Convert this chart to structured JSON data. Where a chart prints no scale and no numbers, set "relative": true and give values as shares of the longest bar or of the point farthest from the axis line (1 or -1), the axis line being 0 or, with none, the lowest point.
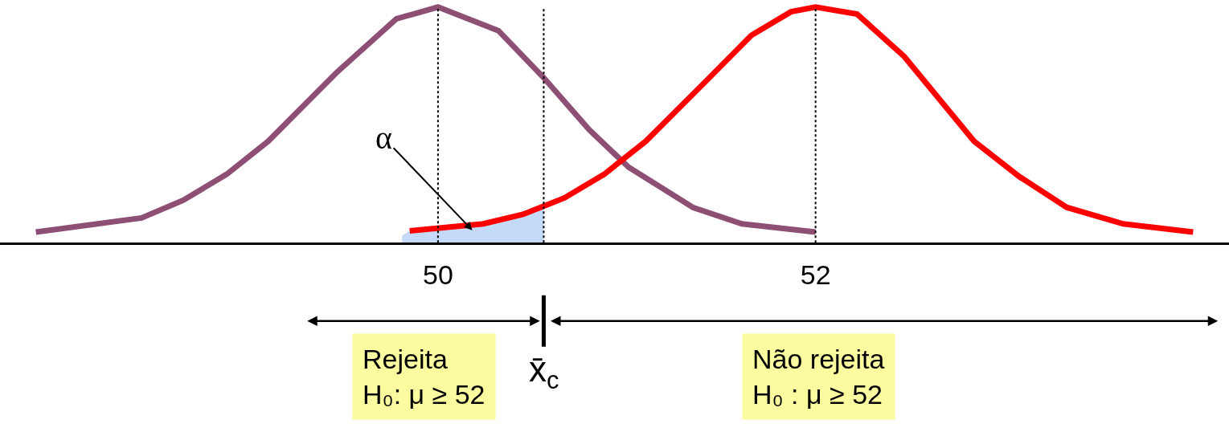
{
  "chart_data": {
    "type": "line",
    "relative": true,
    "xlim": [
      47.68,
      54.19
    ],
    "xticks": [
      50,
      52
    ],
    "marker": "none",
    "line_style": "solid",
    "series": [
      {
        "color": "#8e4f75",
        "x": [
          47.87,
          48.43,
          48.65,
          48.88,
          49.1,
          49.46,
          49.78,
          50,
          50.32,
          50.56,
          50.8,
          51.01,
          51.35,
          51.61,
          52
        ],
        "values": [
          0.045,
          0.105,
          0.18,
          0.29,
          0.43,
          0.72,
          0.95,
          1,
          0.9,
          0.7,
          0.48,
          0.32,
          0.15,
          0.08,
          0.045
        ]
      },
      {
        "color": "#ff0000",
        "x": [
          49.85,
          50.24,
          50.45,
          50.67,
          50.88,
          51.1,
          51.4,
          51.66,
          51.87,
          52,
          52.22,
          52.47,
          52.84,
          53.08,
          53.33,
          53.63,
          54
        ],
        "values": [
          0.05,
          0.08,
          0.12,
          0.19,
          0.29,
          0.43,
          0.67,
          0.88,
          0.98,
          1,
          0.97,
          0.79,
          0.43,
          0.28,
          0.15,
          0.08,
          0.045
        ]
      },
      {
        "type": "area",
        "color": "#c5d9f8",
        "x": [
          49.81,
          49.85,
          50.24,
          50.45,
          50.56
        ],
        "values": [
          0.03,
          0.05,
          0.08,
          0.12,
          0.16
        ]
      }
    ],
    "ref_lines": [
      {
        "axis": "x",
        "value": 50,
        "line_style": "dotted",
        "color": "#000000"
      },
      {
        "axis": "x",
        "value": 52,
        "line_style": "dotted",
        "color": "#000000"
      },
      {
        "axis": "x",
        "value": 50.56,
        "line_style": "dotted",
        "color": "#000000",
        "label": "x̄$_{c}$"
      }
    ],
    "annotations": [
      "α",
      "Rejeita\nH₀: μ ≥ 52",
      "Não rejeita\nH₀ : μ ≥ 52"
    ]
  }
}
